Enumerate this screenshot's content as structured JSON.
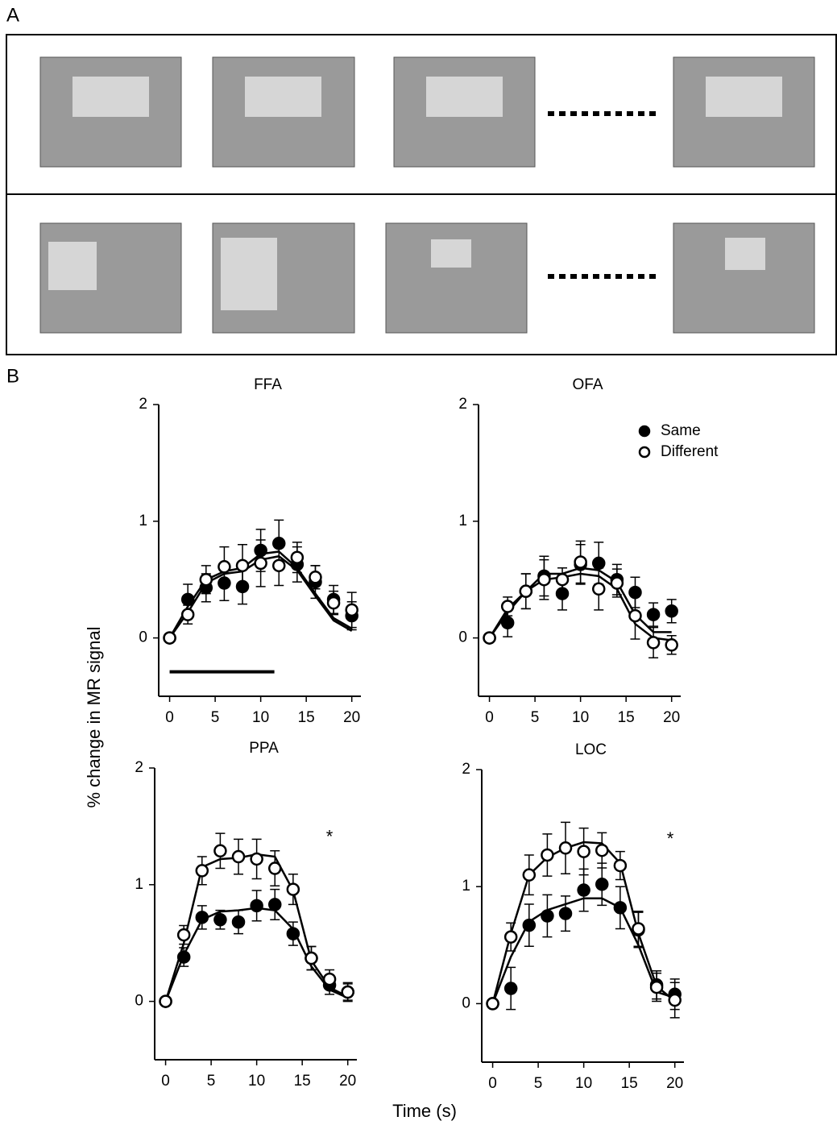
{
  "panel_labels": [
    "A",
    "B"
  ],
  "y_axis_label": "% change in MR signal",
  "x_axis_label": "Time (s)",
  "chart_data": [
    {
      "type": "line",
      "title": "FFA",
      "x": [
        0,
        2,
        4,
        6,
        8,
        10,
        12,
        14,
        16,
        18,
        20
      ],
      "xlim": [
        -1.2,
        21
      ],
      "xticks": [
        0,
        5,
        10,
        15,
        20
      ],
      "ylim": [
        -0.5,
        2
      ],
      "yticks": [
        0,
        1,
        2
      ],
      "stimulus": [
        0,
        11.5,
        -0.29
      ],
      "series": [
        {
          "color": "#000000",
          "marker": "filled",
          "values": [
            0,
            0.33,
            0.43,
            0.47,
            0.44,
            0.75,
            0.81,
            0.63,
            0.48,
            0.33,
            0.19
          ],
          "errors": [
            0,
            0.13,
            0.12,
            0.15,
            0.15,
            0.18,
            0.2,
            0.15,
            0.14,
            0.12,
            0.12
          ],
          "fit": [
            0,
            0.27,
            0.5,
            0.57,
            0.6,
            0.72,
            0.74,
            0.6,
            0.38,
            0.17,
            0.08
          ]
        },
        {
          "color": "#000000",
          "marker": "open",
          "values": [
            0,
            0.2,
            0.5,
            0.61,
            0.62,
            0.64,
            0.62,
            0.69,
            0.52,
            0.3,
            0.24
          ],
          "errors": [
            0,
            0.08,
            0.12,
            0.17,
            0.18,
            0.2,
            0.17,
            0.13,
            0.1,
            0.1,
            0.15
          ],
          "fit": [
            0,
            0.22,
            0.47,
            0.55,
            0.57,
            0.67,
            0.7,
            0.58,
            0.36,
            0.15,
            0.06
          ]
        }
      ]
    },
    {
      "type": "line",
      "title": "OFA",
      "x": [
        0,
        2,
        4,
        6,
        8,
        10,
        12,
        14,
        16,
        18,
        20
      ],
      "xlim": [
        -1.2,
        21
      ],
      "xticks": [
        0,
        5,
        10,
        15,
        20
      ],
      "ylim": [
        -0.5,
        2
      ],
      "yticks": [
        0,
        1,
        2
      ],
      "legend": "upper right",
      "series": [
        {
          "name": "Same",
          "color": "#000000",
          "marker": "filled",
          "values": [
            0,
            0.13,
            0.4,
            0.53,
            0.38,
            0.63,
            0.64,
            0.5,
            0.39,
            0.2,
            0.23
          ],
          "errors": [
            0,
            0.12,
            0.15,
            0.17,
            0.14,
            0.17,
            0.18,
            0.13,
            0.13,
            0.1,
            0.1
          ],
          "fit": [
            0,
            0.22,
            0.4,
            0.55,
            0.55,
            0.6,
            0.58,
            0.48,
            0.2,
            0.05,
            0.05
          ]
        },
        {
          "name": "Different",
          "color": "#000000",
          "marker": "open",
          "values": [
            0,
            0.27,
            0.4,
            0.5,
            0.5,
            0.65,
            0.42,
            0.47,
            0.19,
            -0.04,
            -0.06
          ],
          "errors": [
            0,
            0.08,
            0.15,
            0.17,
            0.1,
            0.18,
            0.18,
            0.12,
            0.2,
            0.13,
            0.08
          ],
          "fit": [
            0,
            0.25,
            0.4,
            0.5,
            0.52,
            0.55,
            0.53,
            0.42,
            0.12,
            0,
            -0.02
          ]
        }
      ]
    },
    {
      "type": "line",
      "title": "PPA",
      "x": [
        0,
        2,
        4,
        6,
        8,
        10,
        12,
        14,
        16,
        18,
        20
      ],
      "xlim": [
        -1.2,
        21
      ],
      "xticks": [
        0,
        5,
        10,
        15,
        20
      ],
      "ylim": [
        -0.5,
        2
      ],
      "yticks": [
        0,
        1,
        2
      ],
      "annotation": {
        "text": "*",
        "x": 18,
        "y": 1.4
      },
      "series": [
        {
          "color": "#000000",
          "marker": "filled",
          "values": [
            0,
            0.38,
            0.72,
            0.7,
            0.68,
            0.82,
            0.83,
            0.58,
            0.37,
            0.14,
            0.08
          ],
          "errors": [
            0,
            0.08,
            0.1,
            0.08,
            0.1,
            0.13,
            0.13,
            0.1,
            0.1,
            0.08,
            0.07
          ],
          "fit": [
            0,
            0.4,
            0.7,
            0.77,
            0.78,
            0.8,
            0.78,
            0.62,
            0.3,
            0.1,
            0.03
          ]
        },
        {
          "color": "#000000",
          "marker": "open",
          "values": [
            0,
            0.57,
            1.12,
            1.29,
            1.24,
            1.22,
            1.14,
            0.96,
            0.37,
            0.19,
            0.08
          ],
          "errors": [
            0,
            0.08,
            0.12,
            0.15,
            0.15,
            0.17,
            0.15,
            0.13,
            0.1,
            0.08,
            0.08
          ],
          "fit": [
            0,
            0.5,
            1.15,
            1.22,
            1.23,
            1.26,
            1.24,
            0.95,
            0.35,
            0.12,
            0.04
          ]
        }
      ]
    },
    {
      "type": "line",
      "title": "LOC",
      "x": [
        0,
        2,
        4,
        6,
        8,
        10,
        12,
        14,
        16,
        18,
        20
      ],
      "xlim": [
        -1.2,
        21
      ],
      "xticks": [
        0,
        5,
        10,
        15,
        20
      ],
      "ylim": [
        -0.5,
        2
      ],
      "yticks": [
        0,
        1,
        2
      ],
      "annotation": {
        "text": "*",
        "x": 19.5,
        "y": 1.4
      },
      "series": [
        {
          "color": "#000000",
          "marker": "filled",
          "values": [
            0,
            0.13,
            0.67,
            0.75,
            0.77,
            0.97,
            1.02,
            0.82,
            0.63,
            0.16,
            0.08
          ],
          "errors": [
            0,
            0.18,
            0.18,
            0.18,
            0.15,
            0.18,
            0.18,
            0.18,
            0.15,
            0.12,
            0.13
          ],
          "fit": [
            0,
            0.4,
            0.7,
            0.8,
            0.85,
            0.9,
            0.9,
            0.82,
            0.5,
            0.1,
            0.05
          ]
        },
        {
          "color": "#000000",
          "marker": "open",
          "values": [
            0,
            0.57,
            1.1,
            1.27,
            1.33,
            1.3,
            1.31,
            1.18,
            0.64,
            0.14,
            0.03
          ],
          "errors": [
            0,
            0.12,
            0.17,
            0.18,
            0.22,
            0.2,
            0.15,
            0.12,
            0.15,
            0.12,
            0.15
          ],
          "fit": [
            0,
            0.6,
            1.1,
            1.25,
            1.33,
            1.38,
            1.37,
            1.2,
            0.6,
            0.15,
            0.02
          ]
        }
      ]
    }
  ]
}
